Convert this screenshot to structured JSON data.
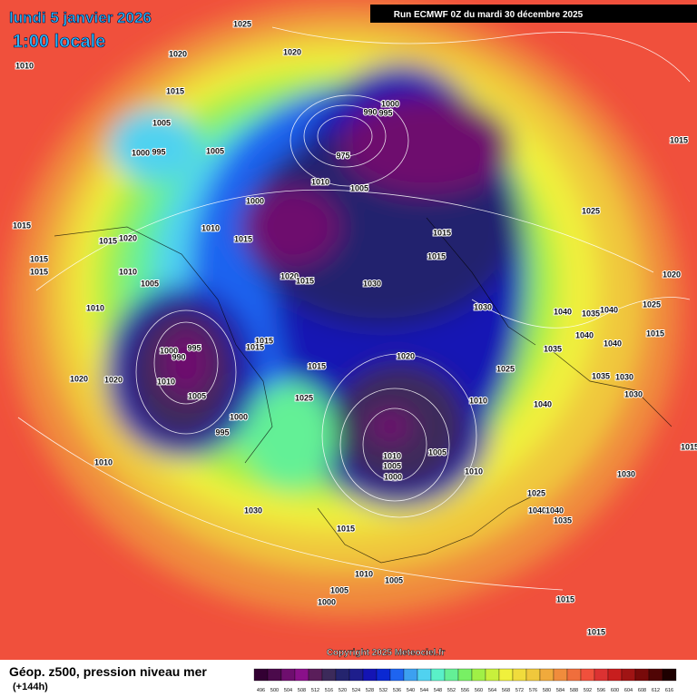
{
  "header": {
    "date": "lundi 5 janvier 2026",
    "time": "1:00 locale",
    "run": "Run ECMWF 0Z du mardi 30 décembre 2025"
  },
  "copyright": "Copyright 2025 Meteociel.fr",
  "footer": {
    "title": "Géop. z500, pression niveau mer",
    "lead": "(+144h)"
  },
  "isobar_labels": [
    "1025",
    "1020",
    "1020",
    "1010",
    "1015",
    "1000",
    "990",
    "995",
    "1005",
    "995",
    "1000",
    "1005",
    "975",
    "1015",
    "1010",
    "1005",
    "1000",
    "1025",
    "1015",
    "1010",
    "1015",
    "1015",
    "1020",
    "1015",
    "1015",
    "1015",
    "1010",
    "1015",
    "1020",
    "1015",
    "1005",
    "1030",
    "1020",
    "1010",
    "1030",
    "1025",
    "1040",
    "1035",
    "1040",
    "1015",
    "1015",
    "1000",
    "995",
    "990",
    "1015",
    "1040",
    "1040",
    "1035",
    "1020",
    "1015",
    "1025",
    "1010",
    "1020",
    "1020",
    "1035",
    "1030",
    "1005",
    "1025",
    "1010",
    "1040",
    "1030",
    "1000",
    "995",
    "1010",
    "1005",
    "1005",
    "1000",
    "1010",
    "1010",
    "1030",
    "1025",
    "1040",
    "1040",
    "1035",
    "1030",
    "1015",
    "1010",
    "1005",
    "1005",
    "1000",
    "1015",
    "1015",
    "1015"
  ],
  "colorbar": {
    "labels": [
      496,
      500,
      504,
      508,
      512,
      516,
      520,
      524,
      528,
      532,
      536,
      540,
      544,
      548,
      552,
      556,
      560,
      564,
      568,
      572,
      576,
      580,
      584,
      588,
      592,
      596,
      600,
      604,
      608,
      612,
      616
    ],
    "colors": [
      "#330033",
      "#4b0a4b",
      "#6e0e6e",
      "#8a108a",
      "#5a1e5a",
      "#3c2a5a",
      "#24246e",
      "#1e1e8c",
      "#1414b4",
      "#0a28d2",
      "#1e64f0",
      "#3ca0f0",
      "#50d2f0",
      "#5af0c8",
      "#64f096",
      "#78f064",
      "#a0f046",
      "#c8f03c",
      "#f0f03c",
      "#f0dc3c",
      "#f0c83c",
      "#f0aa3c",
      "#f08c3c",
      "#f06e3c",
      "#f0503c",
      "#dc3232",
      "#c81e1e",
      "#a01414",
      "#780a0a",
      "#500505",
      "#1e0000"
    ]
  }
}
